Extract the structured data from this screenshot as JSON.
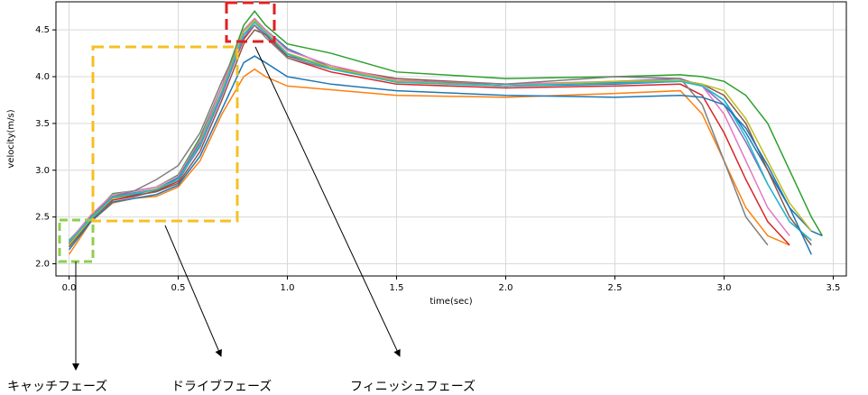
{
  "chart_data": {
    "type": "line",
    "xlabel": "time(sec)",
    "ylabel": "velocity(m/s)",
    "x": [
      0,
      0.1,
      0.2,
      0.3,
      0.4,
      0.5,
      0.6,
      0.7,
      0.8,
      0.85,
      0.9,
      1.0,
      1.2,
      1.5,
      2.0,
      2.5,
      2.8,
      2.9,
      3.0,
      3.1,
      3.2,
      3.3,
      3.4,
      3.45
    ],
    "series": [
      {
        "color": "#1f77b4",
        "values": [
          2.2,
          2.48,
          2.7,
          2.74,
          2.8,
          2.92,
          3.3,
          3.85,
          4.5,
          4.62,
          4.5,
          4.3,
          4.1,
          3.95,
          3.9,
          3.92,
          3.95,
          3.9,
          3.75,
          3.4,
          3.0,
          2.6,
          2.35,
          2.3
        ]
      },
      {
        "color": "#ff7f0e",
        "values": [
          2.1,
          2.45,
          2.65,
          2.7,
          2.72,
          2.82,
          3.1,
          3.6,
          4.0,
          4.08,
          4.0,
          3.9,
          3.86,
          3.8,
          3.78,
          3.82,
          3.85,
          3.6,
          3.1,
          2.6,
          2.3,
          2.2,
          null,
          null
        ]
      },
      {
        "color": "#2ca02c",
        "values": [
          2.25,
          2.5,
          2.75,
          2.78,
          2.82,
          2.95,
          3.35,
          3.9,
          4.55,
          4.7,
          4.55,
          4.35,
          4.25,
          4.05,
          3.98,
          4.0,
          4.02,
          4.0,
          3.95,
          3.8,
          3.5,
          3.0,
          2.5,
          2.3
        ]
      },
      {
        "color": "#d62728",
        "values": [
          2.2,
          2.47,
          2.68,
          2.72,
          2.78,
          2.88,
          3.28,
          3.82,
          4.4,
          4.55,
          4.45,
          4.2,
          4.05,
          3.92,
          3.88,
          3.9,
          3.92,
          3.8,
          3.4,
          2.9,
          2.45,
          2.2,
          null,
          null
        ]
      },
      {
        "color": "#9467bd",
        "values": [
          2.22,
          2.5,
          2.72,
          2.76,
          2.8,
          2.9,
          3.25,
          3.8,
          4.42,
          4.55,
          4.45,
          4.2,
          4.08,
          3.95,
          3.9,
          3.95,
          3.98,
          3.9,
          3.7,
          3.3,
          2.85,
          2.45,
          2.25,
          null
        ]
      },
      {
        "color": "#8c564b",
        "values": [
          2.18,
          2.46,
          2.7,
          2.73,
          2.77,
          2.86,
          3.2,
          3.75,
          4.35,
          4.5,
          4.45,
          4.22,
          4.1,
          3.98,
          3.92,
          3.94,
          3.96,
          3.92,
          3.8,
          3.5,
          3.0,
          2.5,
          2.2,
          null
        ]
      },
      {
        "color": "#e377c2",
        "values": [
          2.24,
          2.52,
          2.74,
          2.78,
          2.82,
          2.94,
          3.32,
          3.9,
          4.5,
          4.62,
          4.5,
          4.28,
          4.12,
          3.96,
          3.92,
          3.95,
          3.96,
          3.9,
          3.6,
          3.1,
          2.6,
          2.3,
          null,
          null
        ]
      },
      {
        "color": "#7f7f7f",
        "values": [
          2.2,
          2.5,
          2.72,
          2.78,
          2.9,
          3.05,
          3.4,
          3.95,
          4.45,
          4.55,
          4.42,
          4.2,
          4.08,
          3.95,
          3.92,
          4.0,
          3.98,
          3.7,
          3.1,
          2.5,
          2.2,
          null,
          null,
          null
        ]
      },
      {
        "color": "#bcbd22",
        "values": [
          2.2,
          2.48,
          2.7,
          2.75,
          2.8,
          2.9,
          3.28,
          3.85,
          4.48,
          4.6,
          4.48,
          4.25,
          4.1,
          3.95,
          3.9,
          3.95,
          3.96,
          3.92,
          3.85,
          3.55,
          3.1,
          2.65,
          2.35,
          null
        ]
      },
      {
        "color": "#17becf",
        "values": [
          2.23,
          2.49,
          2.71,
          2.75,
          2.79,
          2.9,
          3.27,
          3.83,
          4.45,
          4.58,
          4.47,
          4.24,
          4.08,
          3.94,
          3.9,
          3.93,
          3.95,
          3.9,
          3.75,
          3.35,
          2.85,
          2.45,
          2.25,
          null
        ]
      },
      {
        "color": "#1f77b4",
        "values": [
          2.15,
          2.45,
          2.66,
          2.7,
          2.74,
          2.84,
          3.15,
          3.65,
          4.15,
          4.22,
          4.15,
          4.0,
          3.92,
          3.85,
          3.8,
          3.78,
          3.8,
          3.78,
          3.7,
          3.45,
          3.05,
          2.6,
          2.1,
          null
        ]
      }
    ],
    "xlim": [
      -0.06,
      3.56
    ],
    "ylim": [
      1.87,
      4.8
    ],
    "xticks": [
      {
        "value": 0,
        "label": "0.0"
      },
      0.5,
      {
        "value": 1,
        "label": "1.0"
      },
      1.5,
      {
        "value": 2,
        "label": "2.0"
      },
      2.5,
      {
        "value": 3,
        "label": "3.0"
      },
      3.5
    ],
    "yticks": [
      {
        "value": 2,
        "label": "2.0"
      },
      2.5,
      {
        "value": 3,
        "label": "3.0"
      },
      3.5,
      {
        "value": 4,
        "label": "4.0"
      },
      4.5
    ],
    "grid": true,
    "annotations": [
      {
        "text": "キャッチフェーズ"
      },
      {
        "text": "ドライブフェーズ"
      },
      {
        "text": "フィニッシュフェーズ"
      }
    ]
  }
}
